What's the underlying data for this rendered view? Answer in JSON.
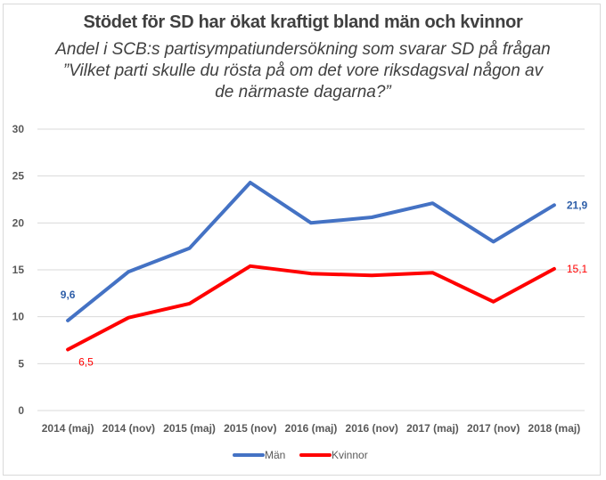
{
  "chart_data": {
    "type": "line",
    "title": "Stödet för SD har ökat kraftigt bland män och kvinnor",
    "subtitle": "Andel i SCB:s partisympatiundersökning som svarar SD på frågan ”Vilket parti skulle du rösta på om det vore riksdagsval någon av de närmaste dagarna?”",
    "xlabel": "",
    "ylabel": "",
    "ylim": [
      0,
      30
    ],
    "yticks": [
      "0",
      "5",
      "10",
      "15",
      "20",
      "25",
      "30"
    ],
    "grid": true,
    "legend_position": "bottom",
    "categories": [
      "2014 (maj)",
      "2014 (nov)",
      "2015 (maj)",
      "2015 (nov)",
      "2016 (maj)",
      "2016 (nov)",
      "2017 (maj)",
      "2017 (nov)",
      "2018 (maj)"
    ],
    "series": [
      {
        "name": "Män",
        "color": "#4472c4",
        "label_color": "#2e5ea8",
        "values": [
          9.6,
          14.8,
          17.3,
          24.3,
          20.0,
          20.6,
          22.1,
          18.0,
          21.9
        ],
        "data_labels": [
          {
            "index": 0,
            "text": "9,6",
            "position": "above"
          },
          {
            "index": 8,
            "text": "21,9",
            "position": "right"
          }
        ]
      },
      {
        "name": "Kvinnor",
        "color": "#ff0000",
        "label_color": "#ff0000",
        "values": [
          6.5,
          9.9,
          11.4,
          15.4,
          14.6,
          14.4,
          14.7,
          11.6,
          15.1
        ],
        "data_labels": [
          {
            "index": 0,
            "text": "6,5",
            "position": "below-right"
          },
          {
            "index": 8,
            "text": "15,1",
            "position": "right"
          }
        ]
      }
    ]
  }
}
